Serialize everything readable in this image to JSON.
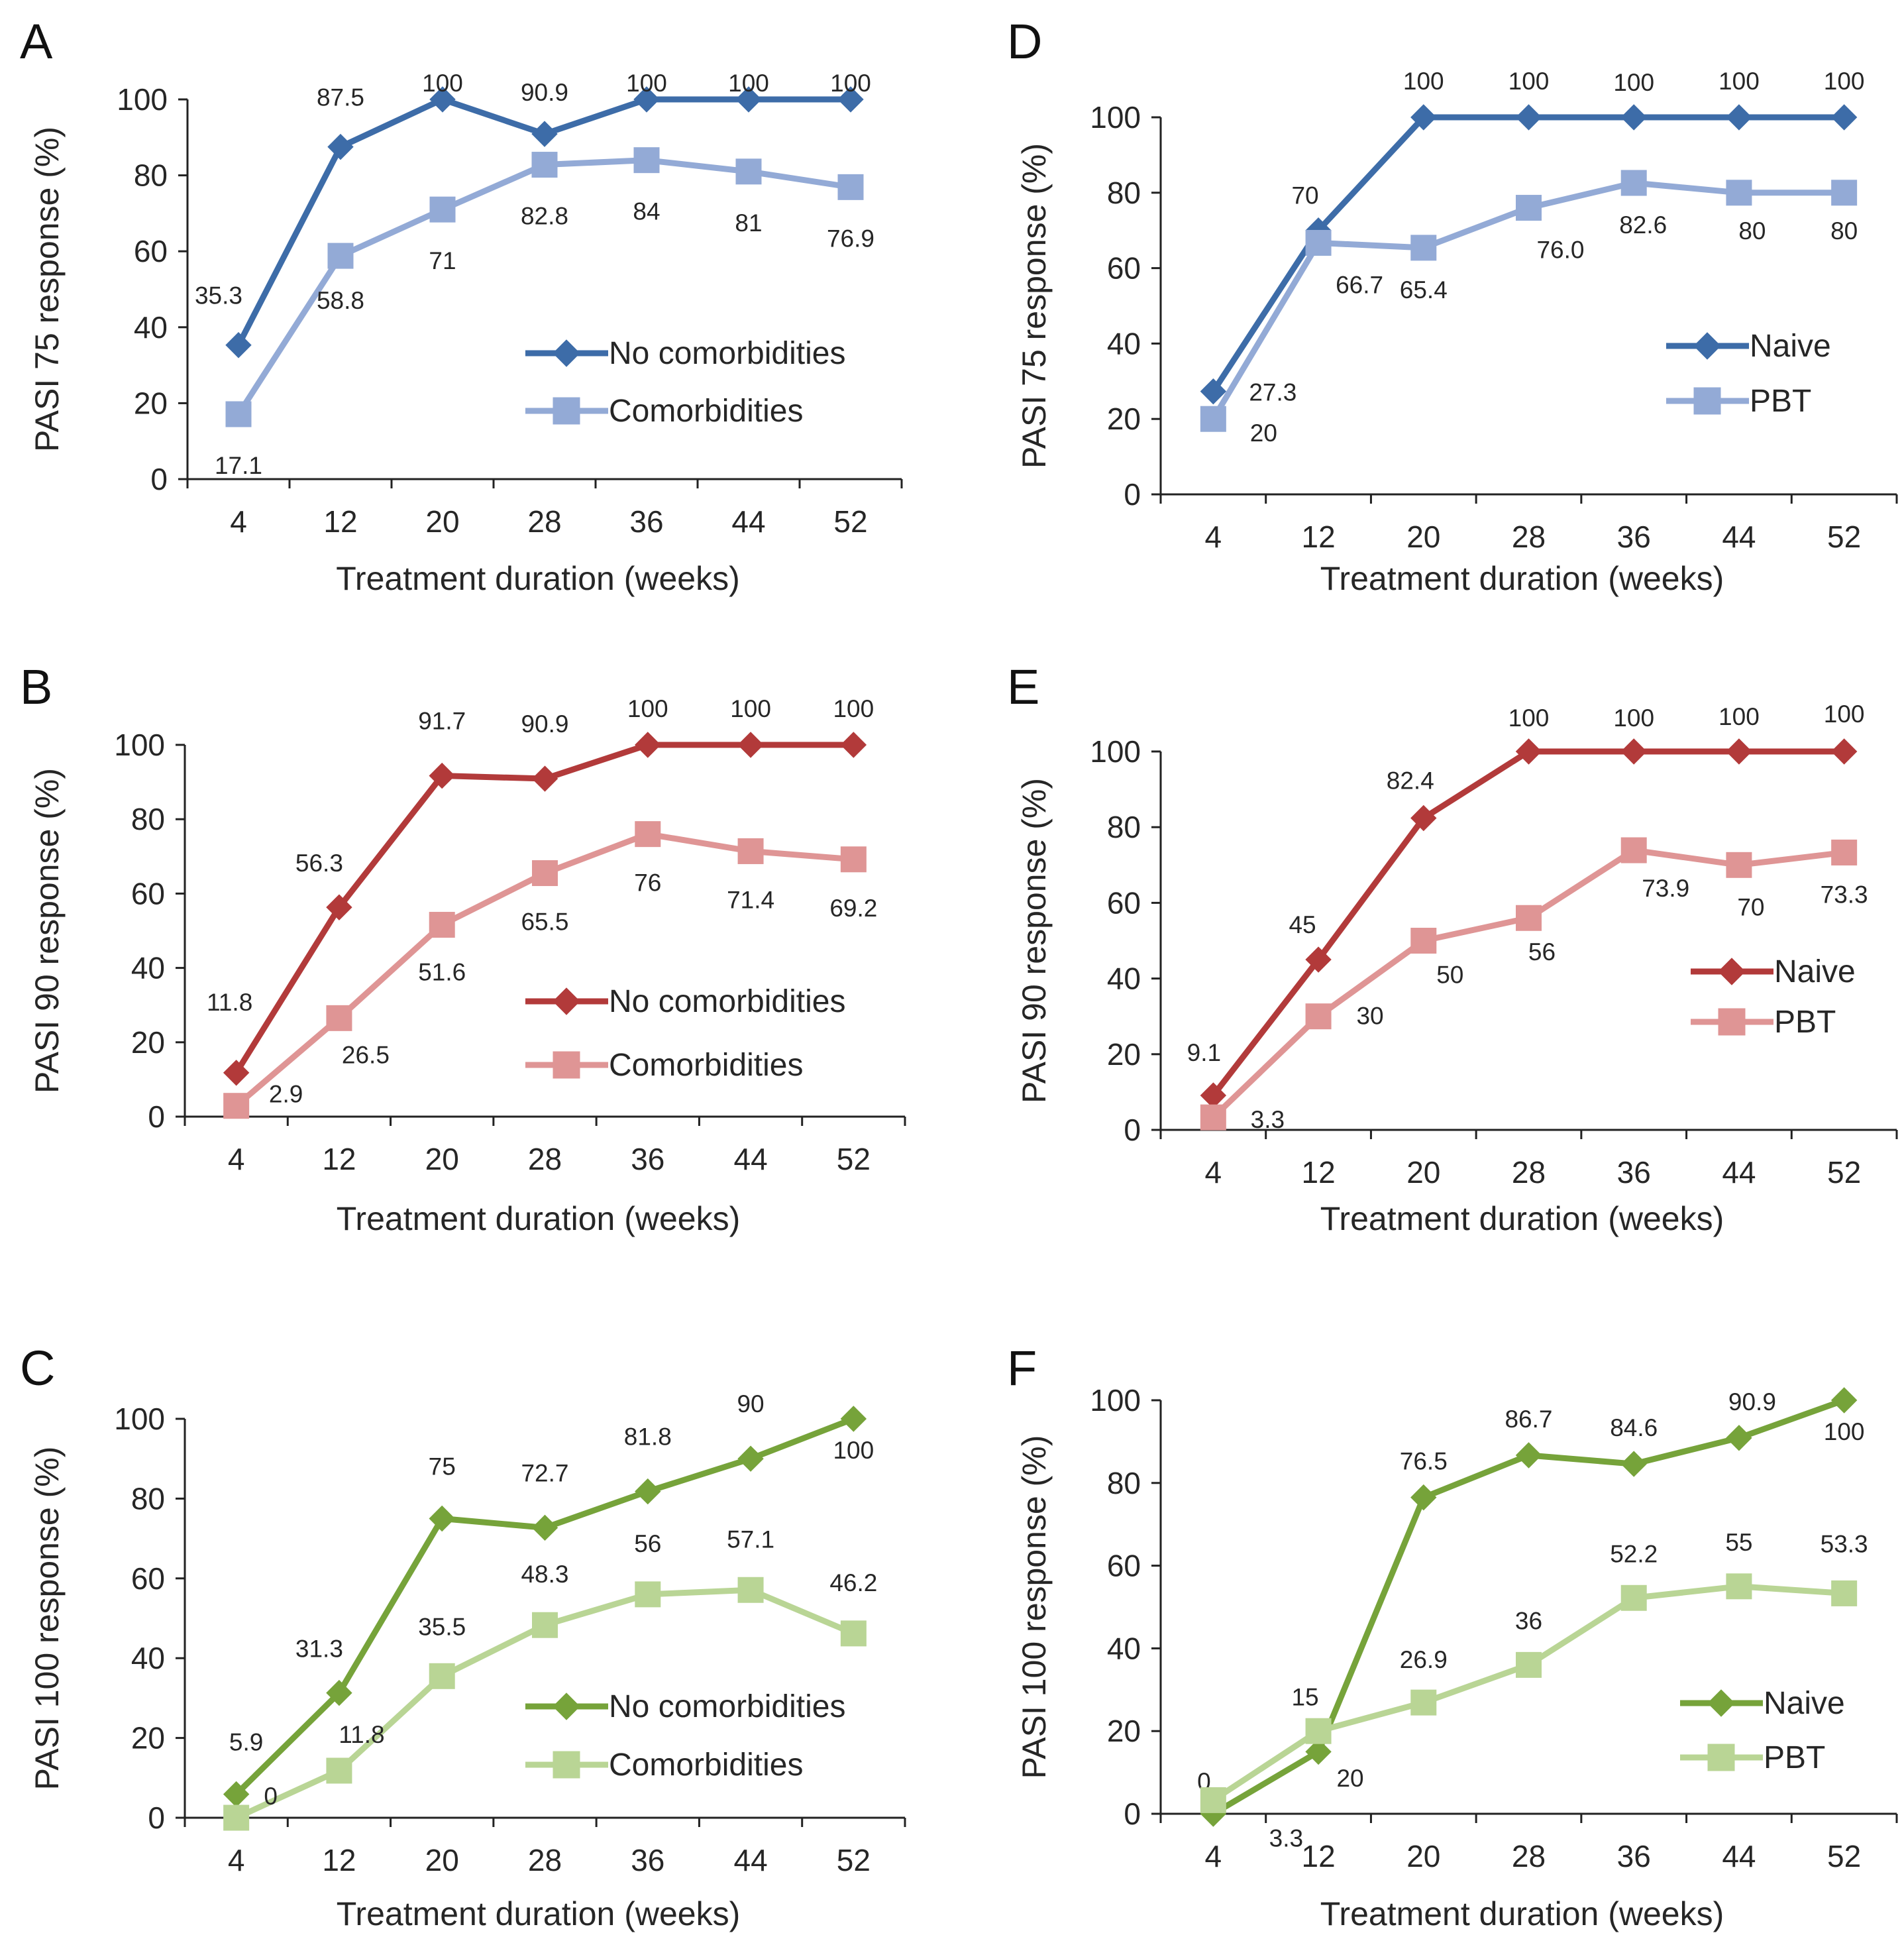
{
  "chart_data": [
    {
      "type": "line",
      "panel": "A",
      "ylabel": "PASI 75 response (%)",
      "xlabel": "Treatment duration (weeks)",
      "categories": [
        "4",
        "12",
        "20",
        "28",
        "36",
        "44",
        "52"
      ],
      "yticks": [
        "0",
        "20",
        "40",
        "60",
        "80",
        "100"
      ],
      "ylim": [
        0,
        100
      ],
      "legend_position": "lower-right",
      "series": [
        {
          "name": "No comorbidities",
          "color": "#3d6ca8",
          "marker": "diamond",
          "values": [
            35.3,
            87.5,
            100,
            90.9,
            100,
            100,
            100
          ],
          "labels": [
            "35.3",
            "87.5",
            "100",
            "90.9",
            "100",
            "100",
            "100"
          ]
        },
        {
          "name": "Comorbidities",
          "color": "#93aad6",
          "marker": "square",
          "values": [
            17.1,
            58.8,
            71,
            82.8,
            84,
            81,
            76.9
          ],
          "labels": [
            "17.1",
            "58.8",
            "71",
            "82.8",
            "84",
            "81",
            "76.9"
          ]
        }
      ]
    },
    {
      "type": "line",
      "panel": "B",
      "ylabel": "PASI 90 response (%)",
      "xlabel": "Treatment duration (weeks)",
      "categories": [
        "4",
        "12",
        "20",
        "28",
        "36",
        "44",
        "52"
      ],
      "yticks": [
        "0",
        "20",
        "40",
        "60",
        "80",
        "100"
      ],
      "ylim": [
        0,
        100
      ],
      "legend_position": "lower-right",
      "series": [
        {
          "name": "No comorbidities",
          "color": "#b23a3a",
          "marker": "diamond",
          "values": [
            11.8,
            56.3,
            91.7,
            90.9,
            100,
            100,
            100
          ],
          "labels": [
            "11.8",
            "56.3",
            "91.7",
            "90.9",
            "100",
            "100",
            "100"
          ]
        },
        {
          "name": "Comorbidities",
          "color": "#df9595",
          "marker": "square",
          "values": [
            2.9,
            26.5,
            51.6,
            65.5,
            76,
            71.4,
            69.2
          ],
          "labels": [
            "2.9",
            "26.5",
            "51.6",
            "65.5",
            "76",
            "71.4",
            "69.2"
          ]
        }
      ]
    },
    {
      "type": "line",
      "panel": "C",
      "ylabel": "PASI 100  response (%)",
      "xlabel": "Treatment duration (weeks)",
      "categories": [
        "4",
        "12",
        "20",
        "28",
        "36",
        "44",
        "52"
      ],
      "yticks": [
        "0",
        "20",
        "40",
        "60",
        "80",
        "100"
      ],
      "ylim": [
        0,
        100
      ],
      "legend_position": "lower-right",
      "series": [
        {
          "name": "No comorbidities",
          "color": "#76a33a",
          "marker": "diamond",
          "values": [
            5.9,
            31.3,
            75,
            72.7,
            81.8,
            90,
            100
          ],
          "labels": [
            "5.9",
            "31.3",
            "75",
            "72.7",
            "81.8",
            "90",
            "100"
          ]
        },
        {
          "name": "Comorbidities",
          "color": "#b9d595",
          "marker": "square",
          "values": [
            0,
            11.8,
            35.5,
            48.3,
            56,
            57.1,
            46.2
          ],
          "labels": [
            "0",
            "11.8",
            "35.5",
            "48.3",
            "56",
            "57.1",
            "46.2"
          ]
        }
      ]
    },
    {
      "type": "line",
      "panel": "D",
      "ylabel": "PASI 75 response (%)",
      "xlabel": "Treatment duration (weeks)",
      "categories": [
        "4",
        "12",
        "20",
        "28",
        "36",
        "44",
        "52"
      ],
      "yticks": [
        "0",
        "20",
        "40",
        "60",
        "80",
        "100"
      ],
      "ylim": [
        0,
        100
      ],
      "legend_position": "lower-right",
      "series": [
        {
          "name": "Naive",
          "color": "#3d6ca8",
          "marker": "diamond",
          "values": [
            27.3,
            70,
            100,
            100,
            100,
            100,
            100
          ],
          "labels": [
            "27.3",
            "70",
            "100",
            "100",
            "100",
            "100",
            "100"
          ]
        },
        {
          "name": "PBT",
          "color": "#93aad6",
          "marker": "square",
          "values": [
            20,
            66.7,
            65.4,
            76.0,
            82.6,
            80,
            80
          ],
          "labels": [
            "20",
            "66.7",
            "65.4",
            "76.0",
            "82.6",
            "80",
            "80"
          ]
        }
      ]
    },
    {
      "type": "line",
      "panel": "E",
      "ylabel": "PASI 90 response (%)",
      "xlabel": "Treatment duration (weeks)",
      "categories": [
        "4",
        "12",
        "20",
        "28",
        "36",
        "44",
        "52"
      ],
      "yticks": [
        "0",
        "20",
        "40",
        "60",
        "80",
        "100"
      ],
      "ylim": [
        0,
        100
      ],
      "legend_position": "lower-right",
      "series": [
        {
          "name": "Naive",
          "color": "#b23a3a",
          "marker": "diamond",
          "values": [
            9.1,
            45,
            82.4,
            100,
            100,
            100,
            100
          ],
          "labels": [
            "9.1",
            "45",
            "82.4",
            "100",
            "100",
            "100",
            "100"
          ]
        },
        {
          "name": "PBT",
          "color": "#df9595",
          "marker": "square",
          "values": [
            3.3,
            30,
            50,
            56,
            73.9,
            70,
            73.3
          ],
          "labels": [
            "3.3",
            "30",
            "50",
            "56",
            "73.9",
            "70",
            "73.3"
          ]
        }
      ]
    },
    {
      "type": "line",
      "panel": "F",
      "ylabel": "PASI 100  response (%)",
      "xlabel": "Treatment duration (weeks)",
      "categories": [
        "4",
        "12",
        "20",
        "28",
        "36",
        "44",
        "52"
      ],
      "yticks": [
        "0",
        "20",
        "40",
        "60",
        "80",
        "100"
      ],
      "ylim": [
        0,
        100
      ],
      "legend_position": "lower-right",
      "series": [
        {
          "name": "Naive",
          "color": "#76a33a",
          "marker": "diamond",
          "values": [
            0,
            15,
            76.5,
            86.7,
            84.6,
            90.9,
            100
          ],
          "labels": [
            "0",
            "15",
            "76.5",
            "86.7",
            "84.6",
            "90.9",
            "100"
          ]
        },
        {
          "name": "PBT",
          "color": "#b9d595",
          "marker": "square",
          "values": [
            3.3,
            20,
            26.9,
            36,
            52.2,
            55,
            53.3
          ],
          "labels": [
            "3.3",
            "20",
            "26.9",
            "36",
            "52.2",
            "55",
            "53.3"
          ]
        }
      ]
    }
  ]
}
